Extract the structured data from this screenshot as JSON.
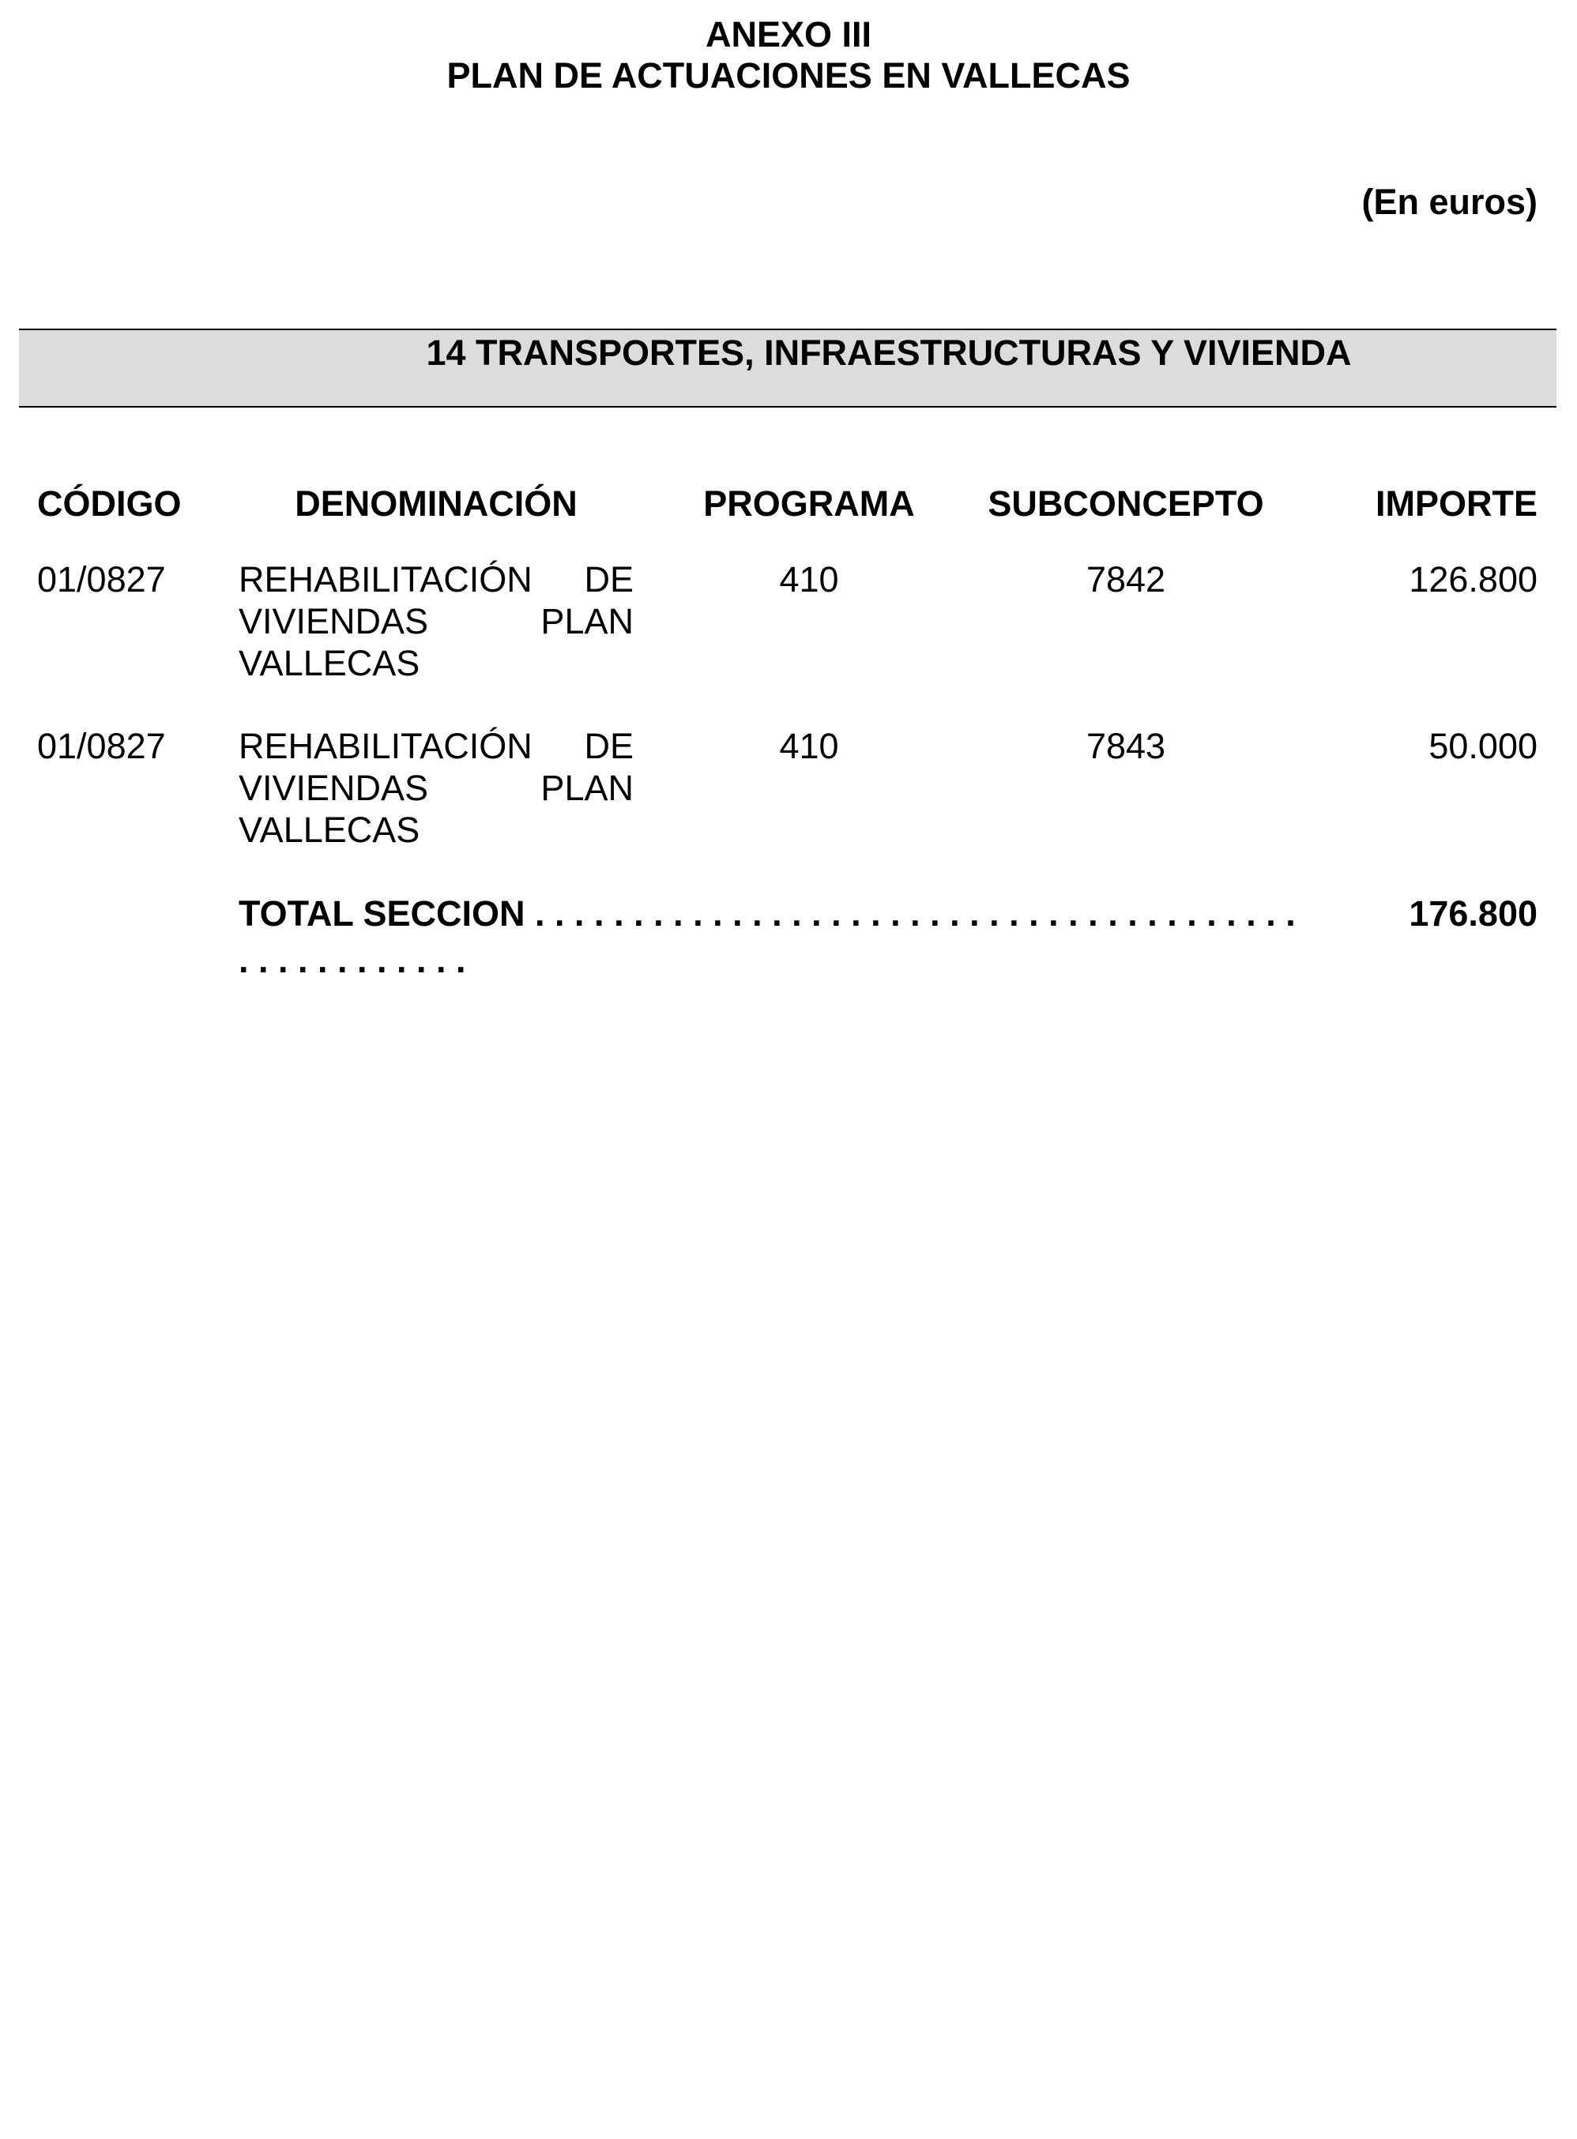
{
  "header": {
    "annex": "ANEXO III",
    "title": "PLAN DE ACTUACIONES EN VALLECAS",
    "currency_note": "(En euros)"
  },
  "section": {
    "title": "14 TRANSPORTES, INFRAESTRUCTURAS Y VIVIENDA",
    "band_color": "#dcdcdc"
  },
  "table": {
    "columns": [
      "CÓDIGO",
      "DENOMINACIÓN",
      "PROGRAMA",
      "SUBCONCEPTO",
      "IMPORTE"
    ],
    "rows": [
      {
        "codigo": "01/0827",
        "denominacion": "REHABILITACIÓN DE VIVIENDAS PLAN VALLECAS",
        "programa": "410",
        "subconcepto": "7842",
        "importe": "126.800"
      },
      {
        "codigo": "01/0827",
        "denominacion": "REHABILITACIÓN DE VIVIENDAS PLAN VALLECAS",
        "programa": "410",
        "subconcepto": "7843",
        "importe": "50.000"
      }
    ],
    "total": {
      "label": "TOTAL SECCION",
      "leader": ". . . . . . . . . . . . . . . . . . . . . . . . . . . . . . . . . . . . . . .",
      "leader_continued": ". . . . . . . . . . . .",
      "value": "176.800"
    }
  }
}
